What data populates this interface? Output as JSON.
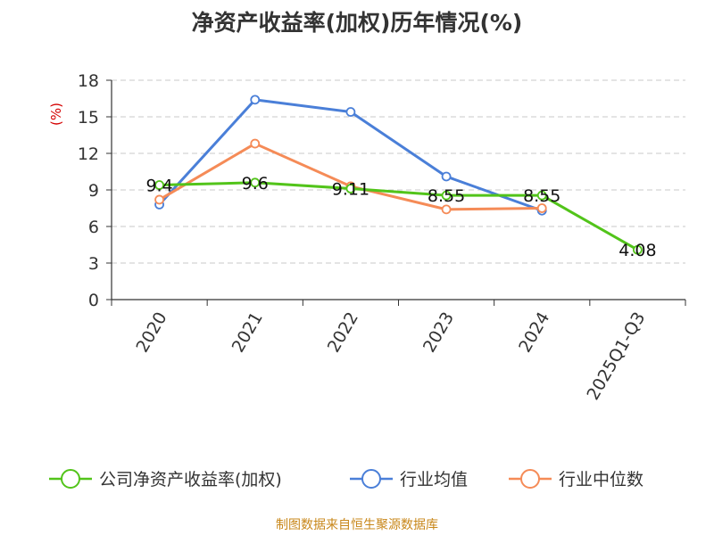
{
  "chart_data": {
    "type": "line",
    "title": "净资产收益率(加权)历年情况(%)",
    "ylabel": "(%)",
    "xlabel": "",
    "categories": [
      "2020",
      "2021",
      "2022",
      "2023",
      "2024",
      "2025Q1-Q3"
    ],
    "ylim": [
      0,
      18
    ],
    "yticks": [
      0,
      3,
      6,
      9,
      12,
      15,
      18
    ],
    "grid": true,
    "legend_position": "bottom",
    "series": [
      {
        "name": "公司净资产收益率(加权)",
        "color": "#52c41a",
        "values": [
          9.4,
          9.6,
          9.11,
          8.55,
          8.55,
          4.08
        ],
        "labels": [
          "9.4",
          "9.6",
          "9.11",
          "8.55",
          "8.55",
          "4.08"
        ]
      },
      {
        "name": "行业均值",
        "color": "#4a7fd8",
        "values": [
          7.8,
          16.4,
          15.4,
          10.1,
          7.3,
          null
        ]
      },
      {
        "name": "行业中位数",
        "color": "#f58b57",
        "values": [
          8.2,
          12.8,
          9.3,
          7.4,
          7.5,
          null
        ]
      }
    ],
    "source": "制图数据来自恒生聚源数据库"
  }
}
